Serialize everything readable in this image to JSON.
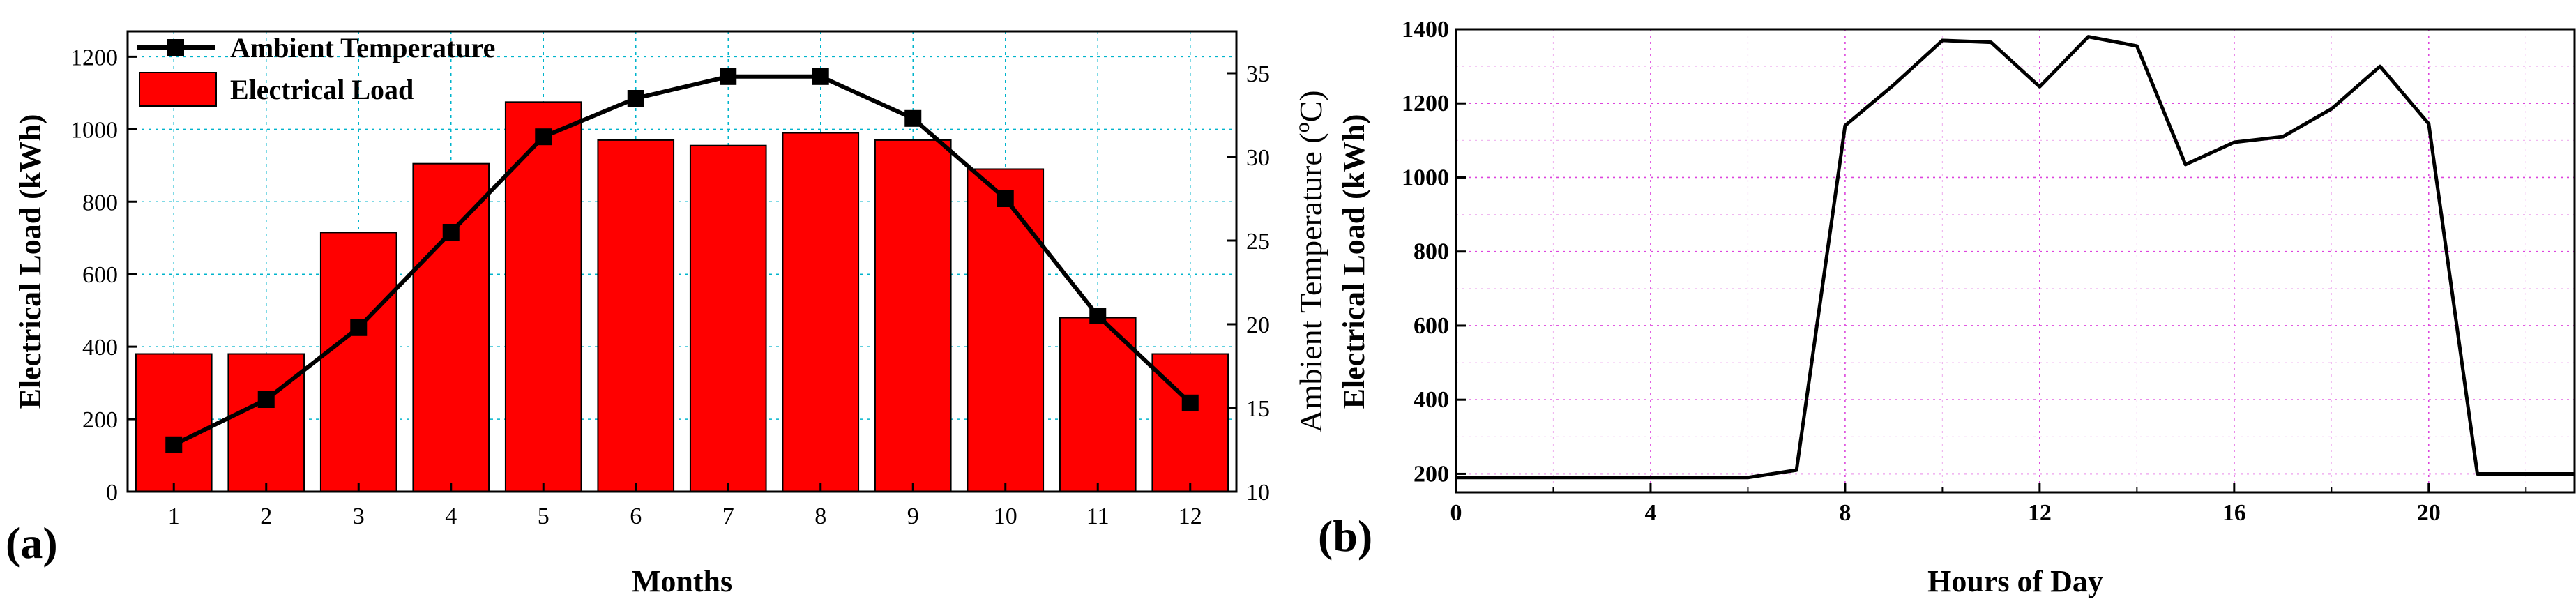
{
  "chart_data": [
    {
      "panel_label": "(a)",
      "type": "bar+line",
      "categories": [
        "1",
        "2",
        "3",
        "4",
        "5",
        "6",
        "7",
        "8",
        "9",
        "10",
        "11",
        "12"
      ],
      "xlabel": "Months",
      "ylabel": "Electrical Load (kWh)",
      "y2label_prefix": "Ambient Temperature (",
      "y2label_sup": "o",
      "y2label_suffix": "C)",
      "ylim": [
        0,
        1270
      ],
      "y2lim": [
        10,
        37.5
      ],
      "yticks": [
        0,
        200,
        400,
        600,
        800,
        1000,
        1200
      ],
      "y2ticks": [
        10,
        15,
        20,
        25,
        30,
        35
      ],
      "grid": true,
      "legend_position": "top-left",
      "series": [
        {
          "name": "Electrical Load",
          "kind": "bar",
          "color": "#ff0000",
          "values": [
            380,
            380,
            715,
            905,
            1075,
            970,
            955,
            990,
            970,
            890,
            480,
            380
          ]
        },
        {
          "name": "Ambient Temperature",
          "kind": "line",
          "axis": "right",
          "color": "#000000",
          "values": [
            12.8,
            15.5,
            19.8,
            25.5,
            31.2,
            33.5,
            34.8,
            34.8,
            32.3,
            27.5,
            20.5,
            15.3
          ]
        }
      ]
    },
    {
      "panel_label": "(b)",
      "type": "line",
      "xlabel": "Hours of Day",
      "ylabel": "Electrical Load (kWh)",
      "xlim": [
        0,
        23
      ],
      "ylim": [
        150,
        1400
      ],
      "xticks": [
        0,
        4,
        8,
        12,
        16,
        20
      ],
      "yticks": [
        200,
        400,
        600,
        800,
        1000,
        1200,
        1400
      ],
      "grid": true,
      "series": [
        {
          "name": "Electrical Load",
          "color": "#000000",
          "x": [
            0,
            1,
            2,
            3,
            4,
            5,
            6,
            7,
            8,
            9,
            10,
            11,
            12,
            13,
            14,
            15,
            16,
            17,
            18,
            19,
            20,
            21,
            22,
            23
          ],
          "values": [
            190,
            190,
            190,
            190,
            190,
            190,
            190,
            210,
            1140,
            1250,
            1370,
            1365,
            1245,
            1380,
            1355,
            1035,
            1095,
            1110,
            1185,
            1300,
            1145,
            200,
            200,
            200
          ]
        }
      ]
    }
  ]
}
